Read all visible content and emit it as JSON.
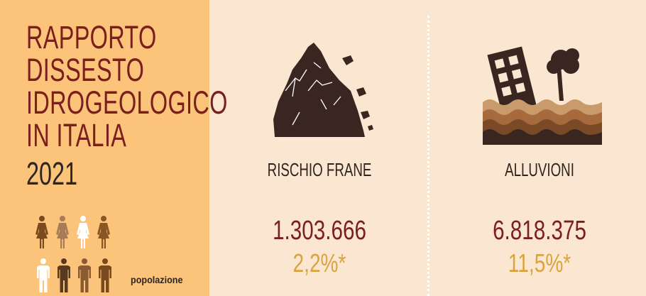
{
  "title": {
    "lines": [
      "RAPPORTO",
      "DISSESTO",
      "IDROGEOLOGICO",
      "IN ITALIA"
    ],
    "year": "2021"
  },
  "legend": {
    "label": "popolazione"
  },
  "categories": [
    {
      "label": "RISCHIO FRANE",
      "value": "1.303.666",
      "percent": "2,2%*",
      "icon": "landslide-icon"
    },
    {
      "label": "ALLUVIONI",
      "value": "6.818.375",
      "percent": "11,5%*",
      "icon": "flood-icon"
    }
  ],
  "colors": {
    "left_panel": "#fbc47a",
    "background": "#fbe7d1",
    "title": "#7a1e1e",
    "dark": "#2f2420",
    "percent": "#d9a440"
  }
}
